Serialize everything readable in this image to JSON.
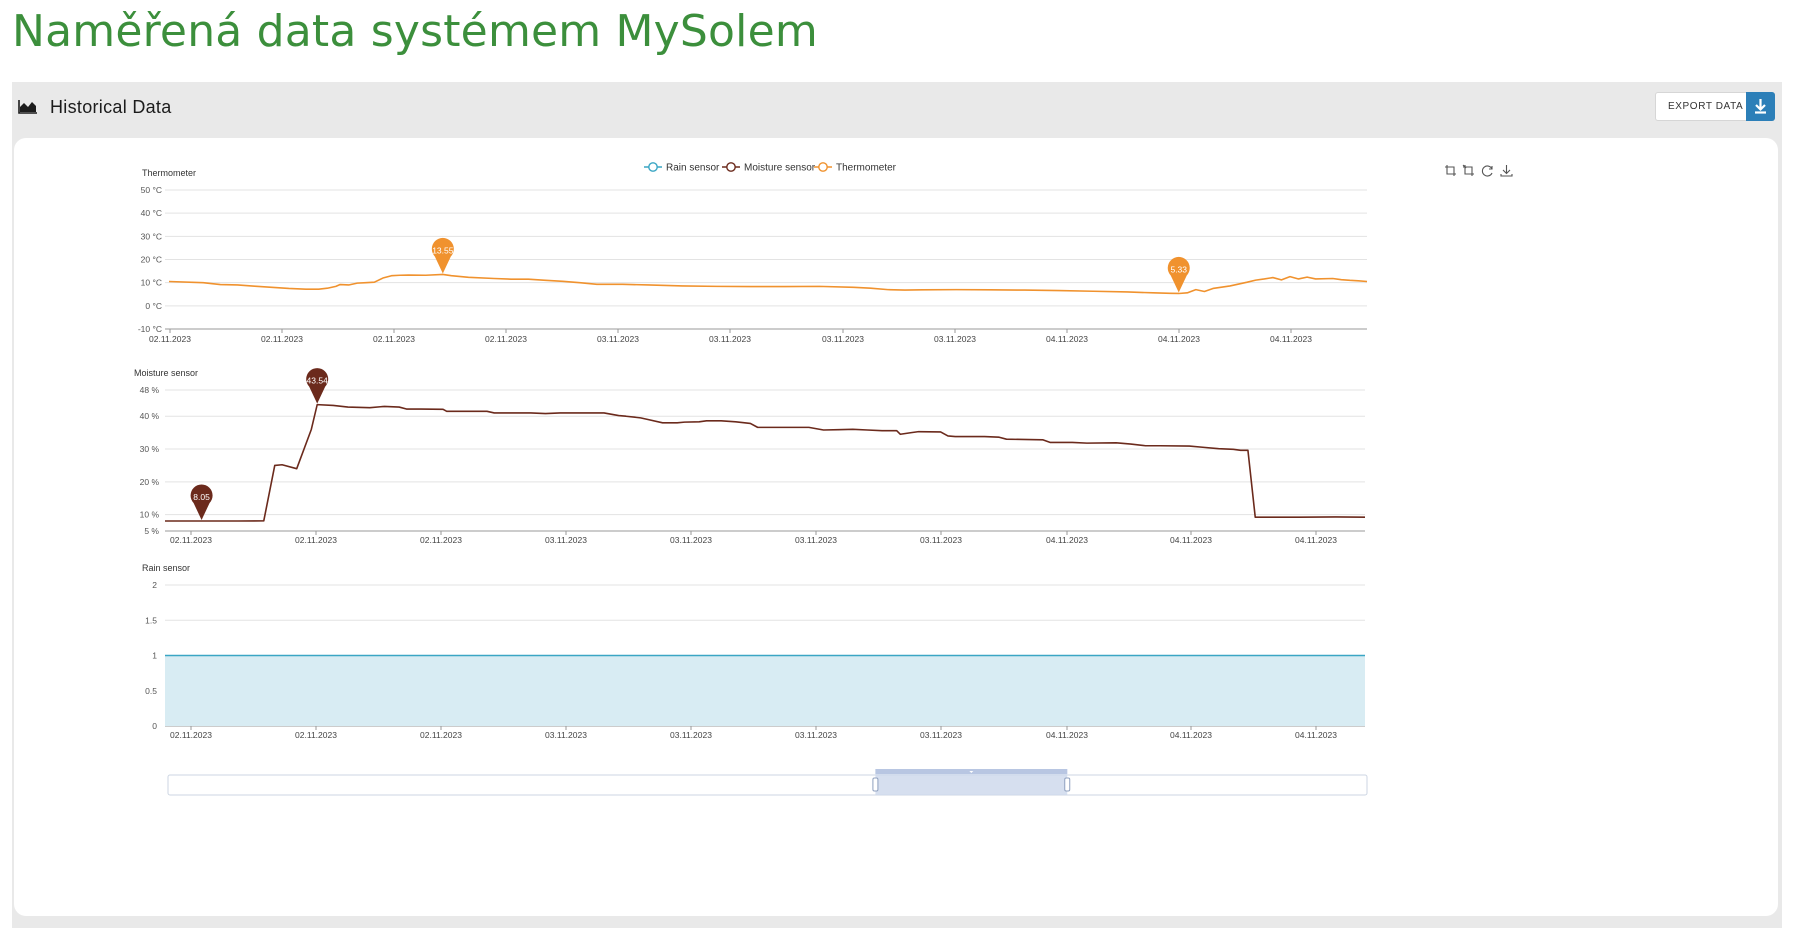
{
  "page": {
    "title": "Naměřená data systémem MySolem"
  },
  "panel": {
    "title": "Historical Data",
    "title_icon": "area-chart-icon",
    "export_label": "EXPORT DATA",
    "export_icon": "download-icon"
  },
  "toolbox": {
    "icons": [
      "zoom-icon",
      "zoom-reset-icon",
      "restore-icon",
      "save-image-icon"
    ]
  },
  "colors": {
    "title_green": "#3c8f3c",
    "rain": "#3aa6c4",
    "moisture": "#6b2a1c",
    "thermo": "#f0922e",
    "export_blue": "#2c7fb8"
  },
  "chart_data": {
    "type": "line",
    "legend": [
      "Rain sensor",
      "Moisture sensor",
      "Thermometer"
    ],
    "legend_position": "top-center",
    "x_tick_labels": [
      "02.11.2023",
      "02.11.2023",
      "02.11.2023",
      "02.11.2023",
      "03.11.2023",
      "03.11.2023",
      "03.11.2023",
      "03.11.2023",
      "04.11.2023",
      "04.11.2023",
      "04.11.2023"
    ],
    "panels": [
      {
        "name": "Thermometer",
        "unit": "°C",
        "y_ticks": [
          "50 °C",
          "40 °C",
          "30 °C",
          "20 °C",
          "10 °C",
          "0 °C",
          "-10 °C"
        ],
        "ylim": [
          -10,
          50
        ],
        "points": [
          [
            0,
            10.5
          ],
          [
            4,
            10
          ],
          [
            6,
            9.2
          ],
          [
            8,
            9
          ],
          [
            10,
            8.5
          ],
          [
            12,
            8
          ],
          [
            14,
            7.5
          ],
          [
            16,
            7.2
          ],
          [
            17.5,
            7.2
          ],
          [
            18.5,
            7.6
          ],
          [
            19.5,
            8.4
          ],
          [
            20,
            9.2
          ],
          [
            21,
            9
          ],
          [
            22,
            9.8
          ],
          [
            23,
            10
          ],
          [
            24,
            10.2
          ],
          [
            25,
            12
          ],
          [
            26,
            13
          ],
          [
            27,
            13.2
          ],
          [
            28,
            13.3
          ],
          [
            30,
            13.2
          ],
          [
            32,
            13.55
          ],
          [
            33,
            13
          ],
          [
            35,
            12.3
          ],
          [
            38,
            11.8
          ],
          [
            40,
            11.5
          ],
          [
            42,
            11.5
          ],
          [
            44,
            11
          ],
          [
            46,
            10.6
          ],
          [
            48,
            10
          ],
          [
            50,
            9.3
          ],
          [
            53,
            9.3
          ],
          [
            56,
            9
          ],
          [
            60,
            8.6
          ],
          [
            64,
            8.4
          ],
          [
            68,
            8.3
          ],
          [
            72,
            8.3
          ],
          [
            76,
            8.4
          ],
          [
            80,
            8
          ],
          [
            82,
            7.6
          ],
          [
            84,
            7
          ],
          [
            86,
            6.8
          ],
          [
            88,
            6.9
          ],
          [
            92,
            7
          ],
          [
            96,
            6.9
          ],
          [
            100,
            6.8
          ],
          [
            104,
            6.6
          ],
          [
            108,
            6.3
          ],
          [
            112,
            6
          ],
          [
            115,
            5.6
          ],
          [
            117,
            5.4
          ],
          [
            118,
            5.33
          ],
          [
            119,
            5.6
          ],
          [
            120,
            7
          ],
          [
            121,
            6.2
          ],
          [
            122,
            7.5
          ],
          [
            124,
            8.6
          ],
          [
            126,
            10.2
          ],
          [
            127,
            11.1
          ],
          [
            128,
            11.6
          ],
          [
            129,
            12.2
          ],
          [
            130,
            11.2
          ],
          [
            131,
            12.6
          ],
          [
            132,
            11.6
          ],
          [
            133,
            12.4
          ],
          [
            134,
            11.6
          ],
          [
            136,
            11.8
          ],
          [
            137,
            11.3
          ],
          [
            138,
            11
          ],
          [
            139,
            10.8
          ],
          [
            140,
            10.5
          ]
        ],
        "markers": [
          {
            "x": 32,
            "value": "13.55"
          },
          {
            "x": 118,
            "value": "5.33"
          }
        ]
      },
      {
        "name": "Moisture sensor",
        "unit": "%",
        "y_ticks": [
          "48 %",
          "40 %",
          "30 %",
          "20 %",
          "10 %",
          "5 %"
        ],
        "ylim": [
          5,
          48
        ],
        "points": [
          [
            0,
            8.05
          ],
          [
            5,
            8.05
          ],
          [
            10,
            8.05
          ],
          [
            13.5,
            8.1
          ],
          [
            15,
            25
          ],
          [
            16,
            25.2
          ],
          [
            18,
            24
          ],
          [
            20,
            36
          ],
          [
            20.8,
            43.54
          ],
          [
            23,
            43.3
          ],
          [
            25,
            42.8
          ],
          [
            28,
            42.6
          ],
          [
            30,
            43
          ],
          [
            32,
            42.8
          ],
          [
            33,
            42.2
          ],
          [
            35,
            42.2
          ],
          [
            38,
            42.1
          ],
          [
            38.5,
            41.5
          ],
          [
            42,
            41.5
          ],
          [
            44,
            41.5
          ],
          [
            45,
            41
          ],
          [
            50,
            41
          ],
          [
            52,
            40.8
          ],
          [
            54,
            41
          ],
          [
            60,
            41
          ],
          [
            62,
            40.2
          ],
          [
            63,
            40
          ],
          [
            65,
            39.5
          ],
          [
            66,
            39
          ],
          [
            68,
            38
          ],
          [
            70,
            38
          ],
          [
            71,
            38.2
          ],
          [
            73,
            38.3
          ],
          [
            74,
            38.6
          ],
          [
            76,
            38.6
          ],
          [
            78,
            38.3
          ],
          [
            80,
            37.8
          ],
          [
            81,
            36.6
          ],
          [
            88,
            36.6
          ],
          [
            90,
            35.8
          ],
          [
            92,
            35.9
          ],
          [
            94,
            36
          ],
          [
            96,
            35.8
          ],
          [
            98,
            35.6
          ],
          [
            100,
            35.6
          ],
          [
            100.5,
            34.5
          ],
          [
            102,
            35
          ],
          [
            103,
            35.3
          ],
          [
            106,
            35.2
          ],
          [
            107,
            34
          ],
          [
            108,
            33.8
          ],
          [
            112,
            33.8
          ],
          [
            114,
            33.6
          ],
          [
            115,
            33
          ],
          [
            120,
            32.8
          ],
          [
            121,
            32
          ],
          [
            124,
            32
          ],
          [
            126,
            31.8
          ],
          [
            130,
            31.9
          ],
          [
            132,
            31.5
          ],
          [
            134,
            31
          ],
          [
            136,
            31
          ],
          [
            140,
            30.9
          ],
          [
            142,
            30.5
          ],
          [
            144,
            30.1
          ],
          [
            146,
            29.9
          ],
          [
            147,
            29.6
          ],
          [
            148,
            29.6
          ],
          [
            149,
            9.2
          ],
          [
            155,
            9.2
          ],
          [
            160,
            9.3
          ],
          [
            164,
            9.2
          ]
        ],
        "markers": [
          {
            "x": 5,
            "value": "8.05"
          },
          {
            "x": 20.8,
            "value": "43.54"
          }
        ]
      },
      {
        "name": "Rain sensor",
        "unit": "",
        "y_ticks": [
          "2",
          "1.5",
          "1",
          "0.5",
          "0"
        ],
        "ylim": [
          0,
          2
        ],
        "points": [
          [
            0,
            1
          ],
          [
            164,
            1
          ]
        ],
        "markers": []
      }
    ],
    "datazoom_window": [
      0.59,
      0.75
    ]
  }
}
